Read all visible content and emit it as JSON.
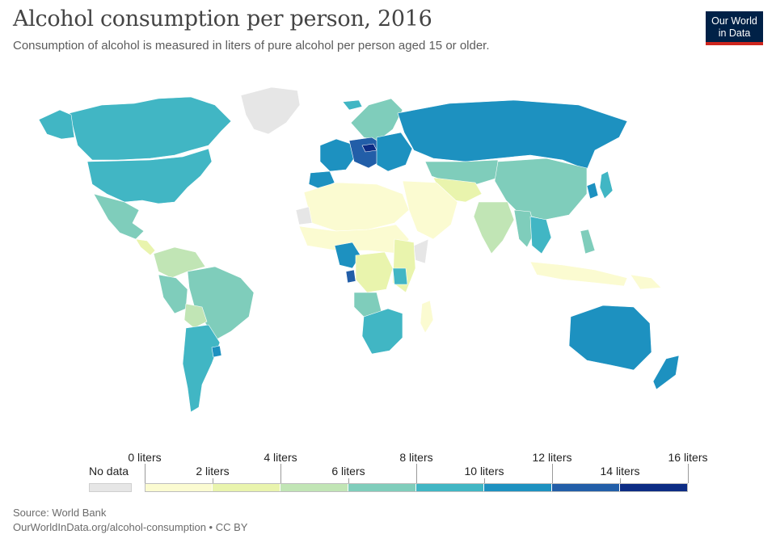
{
  "header": {
    "title": "Alcohol consumption per person, 2016",
    "subtitle": "Consumption of alcohol is measured in liters of pure alcohol per person aged 15 or older."
  },
  "logo": {
    "line1": "Our World",
    "line2": "in Data",
    "bg": "#002147",
    "accent": "#ce261e"
  },
  "legend": {
    "no_data_label": "No data",
    "no_data_color": "#e6e6e6",
    "upper_ticks": [
      {
        "value": 0,
        "label": "0 liters"
      },
      {
        "value": 4,
        "label": "4 liters"
      },
      {
        "value": 8,
        "label": "8 liters"
      },
      {
        "value": 12,
        "label": "12 liters"
      },
      {
        "value": 16,
        "label": "16 liters"
      }
    ],
    "lower_ticks": [
      {
        "value": 2,
        "label": "2 liters"
      },
      {
        "value": 6,
        "label": "6 liters"
      },
      {
        "value": 10,
        "label": "10 liters"
      },
      {
        "value": 14,
        "label": "14 liters"
      }
    ],
    "bins": [
      {
        "from": 0,
        "to": 2,
        "color": "#fbfbd1"
      },
      {
        "from": 2,
        "to": 4,
        "color": "#e9f4ad"
      },
      {
        "from": 4,
        "to": 6,
        "color": "#c1e5b5"
      },
      {
        "from": 6,
        "to": 8,
        "color": "#7fcdbb"
      },
      {
        "from": 8,
        "to": 10,
        "color": "#41b6c4"
      },
      {
        "from": 10,
        "to": 12,
        "color": "#1d91c0"
      },
      {
        "from": 12,
        "to": 14,
        "color": "#225ea8"
      },
      {
        "from": 14,
        "to": 16,
        "color": "#0c2c84"
      }
    ]
  },
  "map_regions": [
    {
      "name": "greenland",
      "color": "#e6e6e6"
    },
    {
      "name": "canada",
      "color": "#41b6c4"
    },
    {
      "name": "usa",
      "color": "#41b6c4"
    },
    {
      "name": "alaska",
      "color": "#41b6c4"
    },
    {
      "name": "mexico",
      "color": "#7fcdbb"
    },
    {
      "name": "central-america",
      "color": "#e9f4ad"
    },
    {
      "name": "colombia-venezuela",
      "color": "#c1e5b5"
    },
    {
      "name": "brazil",
      "color": "#7fcdbb"
    },
    {
      "name": "peru",
      "color": "#7fcdbb"
    },
    {
      "name": "bolivia",
      "color": "#c1e5b5"
    },
    {
      "name": "argentina-chile",
      "color": "#41b6c4"
    },
    {
      "name": "uruguay",
      "color": "#1d91c0"
    },
    {
      "name": "iceland",
      "color": "#41b6c4"
    },
    {
      "name": "scandinavia",
      "color": "#7fcdbb"
    },
    {
      "name": "western-europe",
      "color": "#1d91c0"
    },
    {
      "name": "central-europe",
      "color": "#225ea8"
    },
    {
      "name": "czechia",
      "color": "#0c2c84"
    },
    {
      "name": "spain",
      "color": "#1d91c0"
    },
    {
      "name": "eastern-europe",
      "color": "#1d91c0"
    },
    {
      "name": "russia",
      "color": "#1d91c0"
    },
    {
      "name": "kazakhstan",
      "color": "#7fcdbb"
    },
    {
      "name": "central-asia",
      "color": "#e9f4ad"
    },
    {
      "name": "china-mongolia",
      "color": "#7fcdbb"
    },
    {
      "name": "korea",
      "color": "#1d91c0"
    },
    {
      "name": "japan",
      "color": "#41b6c4"
    },
    {
      "name": "india",
      "color": "#c1e5b5"
    },
    {
      "name": "middle-east",
      "color": "#fbfbd1"
    },
    {
      "name": "north-africa",
      "color": "#fbfbd1"
    },
    {
      "name": "west-sahara",
      "color": "#e6e6e6"
    },
    {
      "name": "sahel",
      "color": "#fbfbd1"
    },
    {
      "name": "nigeria",
      "color": "#1d91c0"
    },
    {
      "name": "gabon",
      "color": "#225ea8"
    },
    {
      "name": "central-africa",
      "color": "#e9f4ad"
    },
    {
      "name": "somalia",
      "color": "#e6e6e6"
    },
    {
      "name": "east-africa",
      "color": "#e9f4ad"
    },
    {
      "name": "uganda",
      "color": "#41b6c4"
    },
    {
      "name": "angola",
      "color": "#7fcdbb"
    },
    {
      "name": "southern-africa",
      "color": "#41b6c4"
    },
    {
      "name": "madagascar",
      "color": "#fbfbd1"
    },
    {
      "name": "southeast-asia",
      "color": "#41b6c4"
    },
    {
      "name": "myanmar-thailand",
      "color": "#7fcdbb"
    },
    {
      "name": "philippines",
      "color": "#7fcdbb"
    },
    {
      "name": "indonesia",
      "color": "#fbfbd1"
    },
    {
      "name": "papua",
      "color": "#fbfbd1"
    },
    {
      "name": "australia",
      "color": "#1d91c0"
    },
    {
      "name": "new-zealand",
      "color": "#1d91c0"
    }
  ],
  "footer": {
    "source": "Source: World Bank",
    "url": "OurWorldInData.org/alcohol-consumption • CC BY"
  }
}
